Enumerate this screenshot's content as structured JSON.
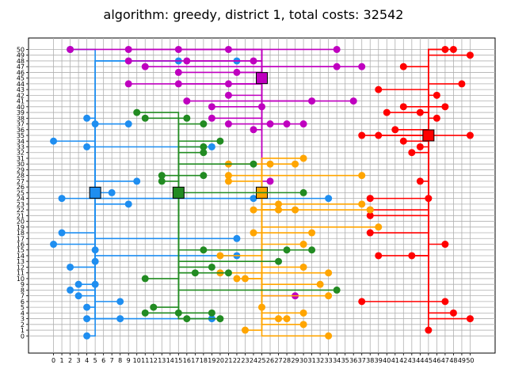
{
  "chart_data": {
    "type": "scatter",
    "title": "algorithm: greedy, district 1, total costs: 32542",
    "xlabel": "",
    "ylabel": "",
    "xlim": [
      -3,
      53
    ],
    "ylim": [
      -3,
      52
    ],
    "xticks": [
      0,
      1,
      2,
      3,
      4,
      5,
      6,
      7,
      8,
      9,
      10,
      11,
      12,
      13,
      14,
      15,
      16,
      17,
      18,
      19,
      20,
      21,
      22,
      23,
      24,
      25,
      26,
      27,
      28,
      29,
      30,
      31,
      32,
      33,
      34,
      35,
      36,
      37,
      38,
      39,
      40,
      41,
      42,
      43,
      44,
      45,
      46,
      47,
      48,
      49,
      50
    ],
    "yticks": [
      0,
      1,
      2,
      3,
      4,
      5,
      6,
      7,
      8,
      9,
      10,
      11,
      12,
      13,
      14,
      15,
      16,
      17,
      18,
      19,
      20,
      21,
      22,
      23,
      24,
      25,
      26,
      27,
      28,
      29,
      30,
      31,
      32,
      33,
      34,
      35,
      36,
      37,
      38,
      39,
      40,
      41,
      42,
      43,
      44,
      45,
      46,
      47,
      48,
      49,
      50
    ],
    "grid": true,
    "series": [
      {
        "color": "#1f8ef0",
        "battery": [
          5,
          25
        ],
        "points": [
          [
            2,
            50
          ],
          [
            15,
            48
          ],
          [
            22,
            48
          ],
          [
            4,
            38
          ],
          [
            5,
            37
          ],
          [
            9,
            37
          ],
          [
            0,
            34
          ],
          [
            4,
            33
          ],
          [
            19,
            33
          ],
          [
            10,
            27
          ],
          [
            7,
            25
          ],
          [
            1,
            24
          ],
          [
            24,
            24
          ],
          [
            33,
            24
          ],
          [
            9,
            23
          ],
          [
            1,
            18
          ],
          [
            22,
            17
          ],
          [
            0,
            16
          ],
          [
            5,
            15
          ],
          [
            22,
            14
          ],
          [
            5,
            13
          ],
          [
            2,
            12
          ],
          [
            3,
            9
          ],
          [
            5,
            9
          ],
          [
            2,
            8
          ],
          [
            3,
            7
          ],
          [
            8,
            6
          ],
          [
            4,
            5
          ],
          [
            4,
            3
          ],
          [
            8,
            3
          ],
          [
            19,
            3
          ],
          [
            4,
            0
          ]
        ]
      },
      {
        "color": "#ff0000",
        "battery": [
          45,
          35
        ],
        "points": [
          [
            47,
            50
          ],
          [
            48,
            50
          ],
          [
            50,
            49
          ],
          [
            42,
            47
          ],
          [
            49,
            44
          ],
          [
            39,
            43
          ],
          [
            46,
            42
          ],
          [
            42,
            40
          ],
          [
            47,
            40
          ],
          [
            40,
            39
          ],
          [
            44,
            39
          ],
          [
            46,
            38
          ],
          [
            41,
            36
          ],
          [
            37,
            35
          ],
          [
            39,
            35
          ],
          [
            50,
            35
          ],
          [
            42,
            34
          ],
          [
            44,
            33
          ],
          [
            43,
            32
          ],
          [
            44,
            27
          ],
          [
            38,
            24
          ],
          [
            45,
            24
          ],
          [
            38,
            22
          ],
          [
            38,
            21
          ],
          [
            38,
            18
          ],
          [
            47,
            16
          ],
          [
            39,
            14
          ],
          [
            43,
            14
          ],
          [
            37,
            6
          ],
          [
            47,
            6
          ],
          [
            48,
            4
          ],
          [
            50,
            3
          ],
          [
            45,
            1
          ]
        ]
      },
      {
        "color": "#bf00bf",
        "battery": [
          25,
          45
        ],
        "points": [
          [
            2,
            50
          ],
          [
            9,
            50
          ],
          [
            15,
            50
          ],
          [
            21,
            50
          ],
          [
            34,
            50
          ],
          [
            9,
            48
          ],
          [
            16,
            48
          ],
          [
            24,
            48
          ],
          [
            11,
            47
          ],
          [
            34,
            47
          ],
          [
            37,
            47
          ],
          [
            15,
            46
          ],
          [
            22,
            46
          ],
          [
            9,
            44
          ],
          [
            15,
            44
          ],
          [
            21,
            44
          ],
          [
            21,
            42
          ],
          [
            16,
            41
          ],
          [
            31,
            41
          ],
          [
            36,
            41
          ],
          [
            19,
            40
          ],
          [
            25,
            40
          ],
          [
            19,
            38
          ],
          [
            21,
            37
          ],
          [
            26,
            37
          ],
          [
            28,
            37
          ],
          [
            30,
            37
          ],
          [
            24,
            36
          ],
          [
            26,
            27
          ],
          [
            29,
            7
          ]
        ]
      },
      {
        "color": "#ffa500",
        "battery": [
          25,
          25
        ],
        "points": [
          [
            30,
            31
          ],
          [
            21,
            30
          ],
          [
            26,
            30
          ],
          [
            29,
            30
          ],
          [
            21,
            28
          ],
          [
            37,
            28
          ],
          [
            21,
            27
          ],
          [
            27,
            23
          ],
          [
            24,
            22
          ],
          [
            27,
            22
          ],
          [
            29,
            22
          ],
          [
            37,
            23
          ],
          [
            38,
            22
          ],
          [
            39,
            19
          ],
          [
            24,
            18
          ],
          [
            31,
            18
          ],
          [
            30,
            16
          ],
          [
            20,
            14
          ],
          [
            30,
            12
          ],
          [
            20,
            11
          ],
          [
            33,
            11
          ],
          [
            22,
            10
          ],
          [
            23,
            10
          ],
          [
            32,
            9
          ],
          [
            33,
            7
          ],
          [
            25,
            5
          ],
          [
            30,
            4
          ],
          [
            27,
            3
          ],
          [
            28,
            3
          ],
          [
            30,
            2
          ],
          [
            23,
            1
          ],
          [
            33,
            0
          ]
        ]
      },
      {
        "color": "#228b22",
        "battery": [
          15,
          25
        ],
        "points": [
          [
            10,
            39
          ],
          [
            11,
            38
          ],
          [
            16,
            38
          ],
          [
            18,
            37
          ],
          [
            20,
            34
          ],
          [
            18,
            33
          ],
          [
            18,
            32
          ],
          [
            24,
            30
          ],
          [
            13,
            28
          ],
          [
            18,
            28
          ],
          [
            13,
            27
          ],
          [
            30,
            25
          ],
          [
            18,
            15
          ],
          [
            28,
            15
          ],
          [
            31,
            15
          ],
          [
            27,
            13
          ],
          [
            19,
            12
          ],
          [
            17,
            11
          ],
          [
            21,
            11
          ],
          [
            11,
            10
          ],
          [
            34,
            8
          ],
          [
            12,
            5
          ],
          [
            11,
            4
          ],
          [
            15,
            4
          ],
          [
            19,
            4
          ],
          [
            16,
            3
          ],
          [
            20,
            3
          ]
        ]
      }
    ]
  }
}
